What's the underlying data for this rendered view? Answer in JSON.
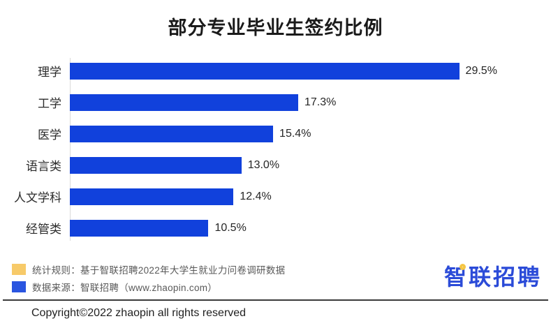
{
  "title": "部分专业毕业生签约比例",
  "chart_data": {
    "type": "bar",
    "orientation": "horizontal",
    "title": "部分专业毕业生签约比例",
    "categories": [
      "理学",
      "工学",
      "医学",
      "语言类",
      "人文学科",
      "经管类"
    ],
    "values": [
      29.5,
      17.3,
      15.4,
      13.0,
      12.4,
      10.5
    ],
    "value_labels": [
      "29.5%",
      "17.3%",
      "15.4%",
      "13.0%",
      "12.4%",
      "10.5%"
    ],
    "xlim": [
      0,
      32
    ],
    "grid": false,
    "bar_color": "#1141DC",
    "axis_line_color": "#d9d9d9"
  },
  "legend": {
    "items": [
      {
        "swatch_color": "#F7CA69",
        "label": "统计规则：基于智联招聘2022年大学生就业力问卷调研数据"
      },
      {
        "swatch_color": "#2A55E0",
        "label": "数据来源：智联招聘（www.zhaopin.com）"
      }
    ]
  },
  "logo": {
    "text": "智联招聘"
  },
  "footer": {
    "copyright": "Copyright©2022 zhaopin all rights reserved"
  }
}
